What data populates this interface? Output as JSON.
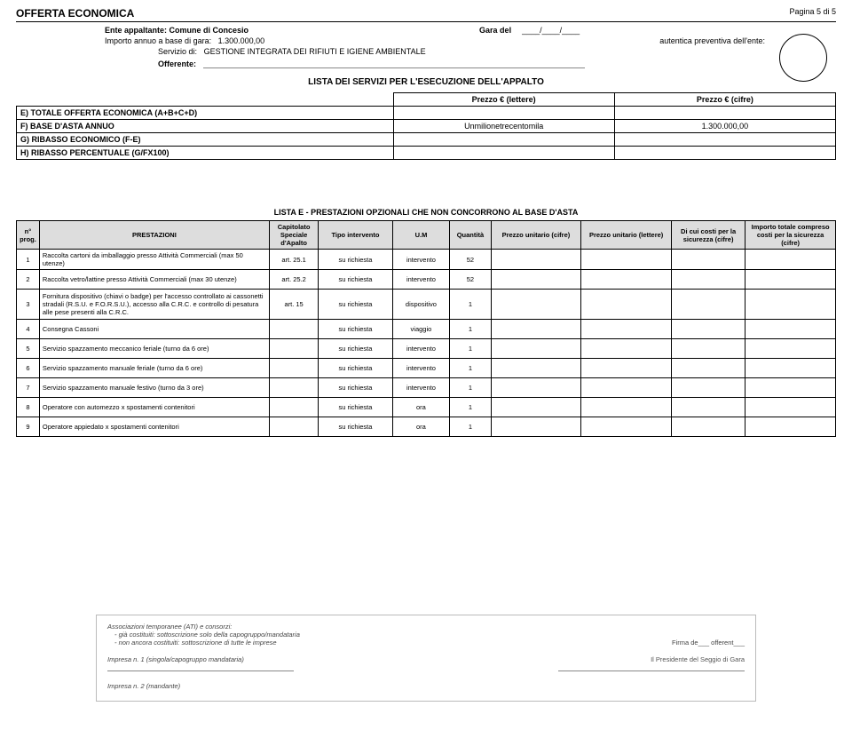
{
  "page": {
    "title": "OFFERTA ECONOMICA",
    "pagenum": "Pagina 5 di 5"
  },
  "header": {
    "ente_label": "Ente appaltante:",
    "ente_value": "Comune di Concesio",
    "gara_label": "Gara del",
    "gara_date": "____/____/____",
    "importo_label": "Importo annuo a base di gara:",
    "importo_value": "1.300.000,00",
    "autentica_label": "autentica preventiva dell'ente:",
    "servizio_label": "Servizio di:",
    "servizio_value": "GESTIONE INTEGRATA DEI RIFIUTI E IGIENE AMBIENTALE",
    "offerente_label": "Offerente:"
  },
  "section_heading": "LISTA DEI SERVIZI PER L'ESECUZIONE DELL'APPALTO",
  "totals": {
    "headers": {
      "lettere": "Prezzo € (lettere)",
      "cifre": "Prezzo € (cifre)"
    },
    "rows": [
      {
        "label": "E) TOTALE OFFERTA ECONOMICA (A+B+C+D)",
        "lettere": "",
        "cifre": ""
      },
      {
        "label": "F) BASE D'ASTA ANNUO",
        "lettere": "Unmilionetrecentomila",
        "cifre": "1.300.000,00"
      },
      {
        "label": "G) RIBASSO ECONOMICO (F-E)",
        "lettere": "",
        "cifre": ""
      },
      {
        "label": "H) RIBASSO PERCENTUALE (G/FX100)",
        "lettere": "",
        "cifre": ""
      }
    ]
  },
  "opt_heading": "LISTA E - PRESTAZIONI OPZIONALI CHE NON CONCORRONO AL BASE D'ASTA",
  "opt_headers": {
    "n": "n° prog.",
    "prest": "PRESTAZIONI",
    "cap": "Capitolato Speciale d'Apalto",
    "tipo": "Tipo intervento",
    "um": "U.M",
    "q": "Quantità",
    "puc": "Prezzo unitario (cifre)",
    "pul": "Prezzo unitario (lettere)",
    "sic": "Di cui costi per la sicurezza (cifre)",
    "tot": "Importo totale compreso costi per la sicurezza (cifre)"
  },
  "opt_rows": [
    {
      "n": "1",
      "prest": "Raccolta cartoni da imballaggio presso Attività Commerciali (max 50 utenze)",
      "cap": "art. 25.1",
      "tipo": "su richiesta",
      "um": "intervento",
      "q": "52"
    },
    {
      "n": "2",
      "prest": "Raccolta vetro/lattine presso Attività Commerciali (max 30 utenze)",
      "cap": "art. 25.2",
      "tipo": "su richiesta",
      "um": "intervento",
      "q": "52"
    },
    {
      "n": "3",
      "prest": "Fornitura dispositivo (chiavi o badge) per l'accesso controllato ai cassonetti stradali (R.S.U. e F.O.R.S.U.), accesso alla C.R.C. e controllo di pesatura alle pese presenti alla C.R.C.",
      "cap": "art. 15",
      "tipo": "su richiesta",
      "um": "dispositivo",
      "q": "1",
      "tall": true
    },
    {
      "n": "4",
      "prest": "Consegna Cassoni",
      "cap": "",
      "tipo": "su richiesta",
      "um": "viaggio",
      "q": "1"
    },
    {
      "n": "5",
      "prest": "Servizio spazzamento meccanico feriale (turno da 6 ore)",
      "cap": "",
      "tipo": "su richiesta",
      "um": "intervento",
      "q": "1"
    },
    {
      "n": "6",
      "prest": "Servizio spazzamento manuale feriale (turno da 6 ore)",
      "cap": "",
      "tipo": "su richiesta",
      "um": "intervento",
      "q": "1"
    },
    {
      "n": "7",
      "prest": "Servizio spazzamento manuale festivo (turno da 3 ore)",
      "cap": "",
      "tipo": "su richiesta",
      "um": "intervento",
      "q": "1"
    },
    {
      "n": "8",
      "prest": "Operatore con automezzo x spostamenti contenitori",
      "cap": "",
      "tipo": "su richiesta",
      "um": "ora",
      "q": "1"
    },
    {
      "n": "9",
      "prest": "Operatore appiedato x spostamenti contenitori",
      "cap": "",
      "tipo": "su richiesta",
      "um": "ora",
      "q": "1"
    }
  ],
  "footer": {
    "ati": "Associazioni temporanee (ATI) e consorzi:",
    "line1": "- già costituiti: sottoscrizione solo della capogruppo/mandataria",
    "line2": "- non ancora costituiti: sottoscrizione di tutte le imprese",
    "firma": "Firma de___ offerent___",
    "impresa1": "Impresa n. 1 (singola/capogruppo mandataria)",
    "presidente": "Il Presidente del Seggio di Gara",
    "impresa2": "Impresa n. 2 (mandante)"
  }
}
